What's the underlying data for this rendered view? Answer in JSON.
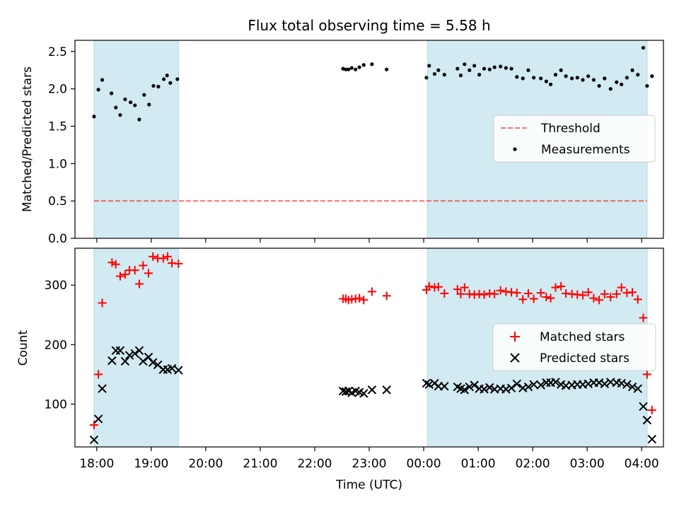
{
  "title": "Flux total observing time = 5.58 h",
  "xlabel": "Time (UTC)",
  "x_ticks": [
    "18:00",
    "19:00",
    "20:00",
    "21:00",
    "22:00",
    "23:00",
    "00:00",
    "01:00",
    "02:00",
    "03:00",
    "04:00"
  ],
  "colors": {
    "shade": "#add8e6",
    "threshold": "#ff0000",
    "measurements": "#000000",
    "matched": "#ff0000",
    "predicted": "#000000"
  },
  "chart_data": [
    {
      "type": "scatter",
      "ylabel": "Matched/Predicted stars",
      "ylim": [
        0,
        2.65
      ],
      "yticks": [
        0.0,
        0.5,
        1.0,
        1.5,
        2.0,
        2.5
      ],
      "ytick_labels": [
        "0.0",
        "0.5",
        "1.0",
        "1.5",
        "2.0",
        "2.5"
      ],
      "xlim_hours": [
        17.6,
        28.4
      ],
      "shaded_hours": [
        [
          17.95,
          19.5
        ],
        [
          24.07,
          28.1
        ]
      ],
      "threshold": {
        "name": "Threshold",
        "value": 0.5
      },
      "legend": {
        "placement": "center-right",
        "entries": [
          "Threshold",
          "Measurements"
        ]
      },
      "series": [
        {
          "name": "Measurements",
          "marker": "dot",
          "x": [
            17.95,
            18.03,
            18.1,
            18.27,
            18.35,
            18.43,
            18.52,
            18.62,
            18.7,
            18.78,
            18.87,
            18.96,
            19.04,
            19.13,
            19.23,
            19.29,
            19.35,
            19.48,
            22.52,
            22.57,
            22.62,
            22.68,
            22.75,
            22.82,
            22.9,
            23.05,
            23.32,
            24.05,
            24.1,
            24.2,
            24.27,
            24.38,
            24.62,
            24.68,
            24.75,
            24.84,
            24.93,
            25.02,
            25.11,
            25.21,
            25.3,
            25.41,
            25.51,
            25.61,
            25.71,
            25.82,
            25.92,
            26.02,
            26.15,
            26.25,
            26.33,
            26.42,
            26.52,
            26.61,
            26.72,
            26.82,
            26.92,
            27.02,
            27.12,
            27.22,
            27.32,
            27.43,
            27.54,
            27.63,
            27.73,
            27.83,
            27.93,
            28.03,
            28.1
          ],
          "y": [
            1.63,
            1.99,
            2.12,
            1.94,
            1.75,
            1.65,
            1.86,
            1.82,
            1.78,
            1.59,
            1.92,
            1.79,
            2.04,
            2.03,
            2.13,
            2.18,
            2.08,
            2.13,
            2.27,
            2.26,
            2.26,
            2.28,
            2.26,
            2.29,
            2.32,
            2.33,
            2.26,
            2.15,
            2.31,
            2.2,
            2.25,
            2.19,
            2.27,
            2.18,
            2.33,
            2.25,
            2.31,
            2.19,
            2.27,
            2.26,
            2.29,
            2.3,
            2.28,
            2.27,
            2.16,
            2.14,
            2.25,
            2.15,
            2.14,
            2.1,
            2.06,
            2.19,
            2.25,
            2.17,
            2.14,
            2.15,
            2.12,
            2.17,
            2.12,
            2.04,
            2.14,
            2.0,
            2.09,
            2.06,
            2.15,
            2.25,
            2.19,
            2.55,
            2.04
          ],
          "extra_x": [
            28.19
          ],
          "extra_y": [
            2.17
          ]
        }
      ]
    },
    {
      "type": "scatter",
      "ylabel": "Count",
      "ylim": [
        28,
        362
      ],
      "yticks": [
        100,
        200,
        300
      ],
      "ytick_labels": [
        "100",
        "200",
        "300"
      ],
      "xlim_hours": [
        17.6,
        28.4
      ],
      "shaded_hours": [
        [
          17.95,
          19.5
        ],
        [
          24.07,
          28.1
        ]
      ],
      "legend": {
        "placement": "center-right",
        "entries": [
          "Matched stars",
          "Predicted stars"
        ]
      },
      "series": [
        {
          "name": "Matched stars",
          "marker": "plus",
          "x": [
            17.95,
            18.03,
            18.1,
            18.28,
            18.35,
            18.43,
            18.52,
            18.6,
            18.7,
            18.78,
            18.85,
            18.95,
            19.03,
            19.12,
            19.22,
            19.3,
            19.38,
            19.5,
            22.52,
            22.57,
            22.62,
            22.68,
            22.75,
            22.82,
            22.9,
            23.05,
            23.32,
            24.05,
            24.1,
            24.2,
            24.27,
            24.38,
            24.62,
            24.68,
            24.75,
            24.84,
            24.93,
            25.02,
            25.11,
            25.21,
            25.3,
            25.41,
            25.51,
            25.61,
            25.71,
            25.82,
            25.92,
            26.02,
            26.15,
            26.25,
            26.33,
            26.42,
            26.52,
            26.61,
            26.72,
            26.82,
            26.92,
            27.02,
            27.12,
            27.22,
            27.32,
            27.43,
            27.54,
            27.63,
            27.73,
            27.83,
            27.93,
            28.03,
            28.1,
            28.19
          ],
          "y": [
            65,
            150,
            270,
            338,
            335,
            315,
            318,
            325,
            325,
            302,
            333,
            320,
            348,
            345,
            345,
            348,
            337,
            336,
            277,
            277,
            275,
            276,
            277,
            278,
            275,
            289,
            282,
            292,
            298,
            296,
            297,
            286,
            293,
            285,
            296,
            285,
            284,
            285,
            284,
            286,
            285,
            291,
            289,
            288,
            287,
            276,
            286,
            277,
            287,
            280,
            278,
            296,
            298,
            286,
            285,
            284,
            283,
            288,
            278,
            275,
            285,
            280,
            285,
            296,
            287,
            288,
            276,
            245,
            150,
            90
          ],
          "extra_x": [],
          "extra_y": []
        },
        {
          "name": "Predicted stars",
          "marker": "x",
          "x": [
            17.95,
            18.03,
            18.1,
            18.28,
            18.35,
            18.43,
            18.52,
            18.6,
            18.7,
            18.78,
            18.85,
            18.95,
            19.03,
            19.12,
            19.22,
            19.3,
            19.38,
            19.5,
            22.52,
            22.57,
            22.62,
            22.68,
            22.75,
            22.82,
            22.9,
            23.05,
            23.32,
            24.05,
            24.1,
            24.2,
            24.27,
            24.38,
            24.62,
            24.68,
            24.75,
            24.84,
            24.93,
            25.02,
            25.11,
            25.21,
            25.3,
            25.41,
            25.51,
            25.61,
            25.71,
            25.82,
            25.92,
            26.02,
            26.15,
            26.25,
            26.33,
            26.42,
            26.52,
            26.61,
            26.72,
            26.82,
            26.92,
            27.02,
            27.12,
            27.22,
            27.32,
            27.43,
            27.54,
            27.63,
            27.73,
            27.83,
            27.93,
            28.03,
            28.1,
            28.19
          ],
          "y": [
            40,
            75,
            126,
            173,
            190,
            190,
            172,
            182,
            185,
            190,
            172,
            179,
            170,
            166,
            158,
            158,
            160,
            157,
            122,
            121,
            122,
            119,
            122,
            120,
            118,
            124,
            124,
            135,
            133,
            135,
            130,
            130,
            129,
            126,
            124,
            129,
            132,
            126,
            125,
            128,
            125,
            126,
            125,
            127,
            134,
            127,
            129,
            133,
            132,
            136,
            136,
            137,
            133,
            131,
            132,
            133,
            133,
            134,
            136,
            136,
            134,
            137,
            136,
            135,
            133,
            129,
            126,
            96,
            73,
            41
          ],
          "extra_x": [],
          "extra_y": []
        }
      ]
    }
  ]
}
